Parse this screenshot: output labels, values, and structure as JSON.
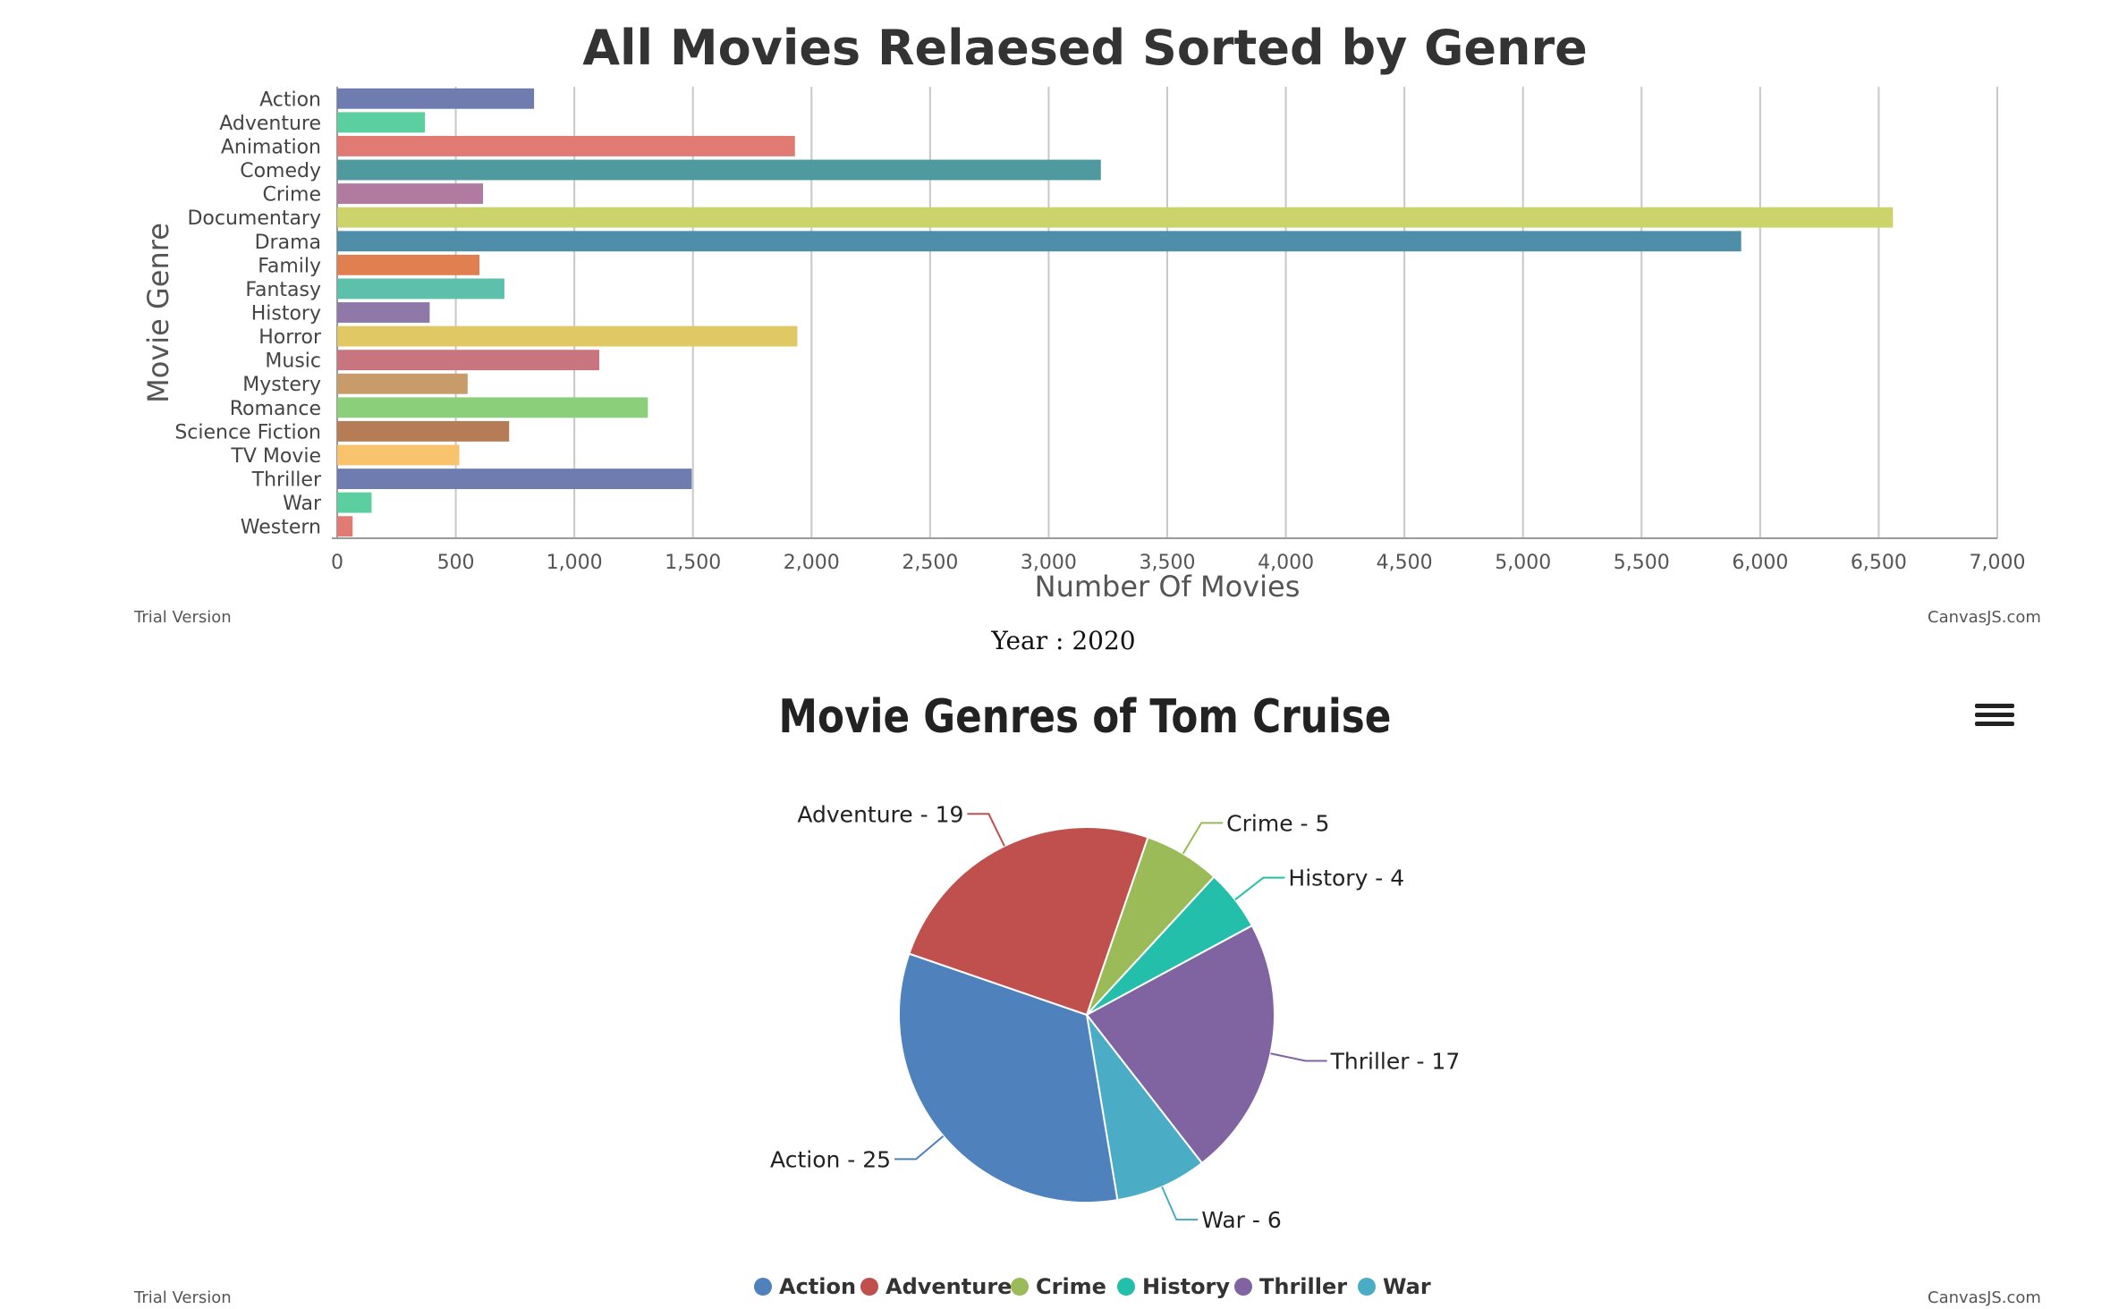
{
  "chart_data": [
    {
      "type": "bar",
      "orientation": "horizontal",
      "title": "All Movies Relaesed Sorted by Genre",
      "xlabel": "Number Of Movies",
      "ylabel": "Movie Genre",
      "xlim": [
        0,
        7000
      ],
      "xticks": [
        "0",
        "500",
        "1,000",
        "1,500",
        "2,000",
        "2,500",
        "3,000",
        "3,500",
        "4,000",
        "4,500",
        "5,000",
        "5,500",
        "6,000",
        "6,500",
        "7,000"
      ],
      "grid": true,
      "categories": [
        "Action",
        "Adventure",
        "Animation",
        "Comedy",
        "Crime",
        "Documentary",
        "Drama",
        "Family",
        "Fantasy",
        "History",
        "Horror",
        "Music",
        "Mystery",
        "Romance",
        "Science Fiction",
        "TV Movie",
        "Thriller",
        "War",
        "Western"
      ],
      "values": [
        830,
        370,
        1930,
        3220,
        615,
        6560,
        5920,
        600,
        705,
        390,
        1940,
        1105,
        550,
        1310,
        725,
        515,
        1495,
        145,
        65
      ],
      "colors": [
        "#6f7cb0",
        "#5ccfa0",
        "#e07a72",
        "#4e9a9f",
        "#b07b9e",
        "#ccd36a",
        "#4f8ea9",
        "#e07f4f",
        "#5cc0aa",
        "#8e79a8",
        "#e0c965",
        "#c97580",
        "#c89c6a",
        "#8ccf7a",
        "#b57c56",
        "#f9c36e",
        "#6f7cb0",
        "#5ccfa0",
        "#e07a72"
      ]
    },
    {
      "type": "pie",
      "title": "Movie Genres of Tom Cruise",
      "subtitle": "Year : 2020",
      "slices": [
        {
          "label": "Action",
          "value": 25,
          "color": "#4f81bc",
          "index_label": "Action - 25"
        },
        {
          "label": "Adventure",
          "value": 19,
          "color": "#c0504e",
          "index_label": "Adventure - 19"
        },
        {
          "label": "Crime",
          "value": 5,
          "color": "#9bbb58",
          "index_label": "Crime - 5"
        },
        {
          "label": "History",
          "value": 4,
          "color": "#23bfaa",
          "index_label": "History - 4"
        },
        {
          "label": "Thriller",
          "value": 17,
          "color": "#8064a1",
          "index_label": "Thriller - 17"
        },
        {
          "label": "War",
          "value": 6,
          "color": "#4aacc5",
          "index_label": "War - 6"
        }
      ],
      "legend_position": "bottom"
    }
  ],
  "watermarks": {
    "trial": "Trial Version",
    "credit": "CanvasJS.com"
  },
  "icons": {
    "menu": "hamburger-menu-icon"
  }
}
